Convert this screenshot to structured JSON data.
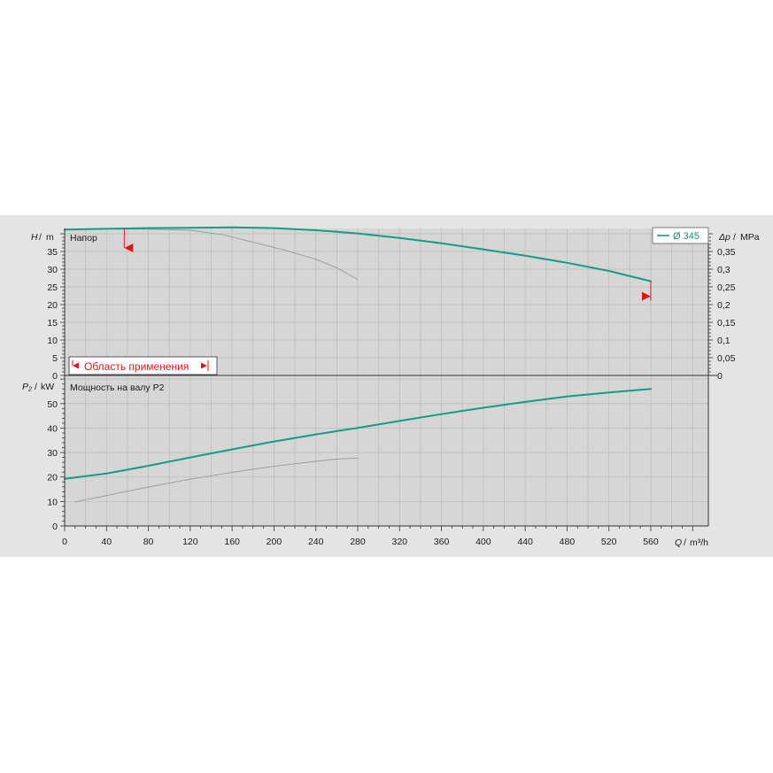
{
  "colors": {
    "panel_bg": "#e4e4e4",
    "plot_bg": "#d6d6d6",
    "grid": "#bdbdbd",
    "main_curve": "#149c84",
    "secondary_curve": "#9a9a9a",
    "range_marker": "#e0161b"
  },
  "chart_data": [
    {
      "type": "line",
      "panel": "head",
      "title": "Напор",
      "ylabel_symbol": "H",
      "ylabel_unit": "m",
      "y2label_symbol": "Δp",
      "y2label_unit": "MPa",
      "xlim": [
        0,
        615
      ],
      "ylim": [
        0,
        41.5
      ],
      "y2lim": [
        0,
        0.415
      ],
      "yticks": [
        0,
        5,
        10,
        15,
        20,
        25,
        30,
        35
      ],
      "y2ticks": [
        "0",
        "0,05",
        "0,1",
        "0,15",
        "0,2",
        "0,25",
        "0,3",
        "0,35"
      ],
      "y2tick_values": [
        0,
        0.05,
        0.1,
        0.15,
        0.2,
        0.25,
        0.3,
        0.35
      ],
      "grid": true,
      "legend": {
        "position": "top-right",
        "label": "Ø 345"
      },
      "operating_range": {
        "label": "Область применения",
        "q_min": 57,
        "q_max": 560
      },
      "series": [
        {
          "name": "Ø 345",
          "role": "main",
          "x": [
            0,
            40,
            80,
            120,
            160,
            200,
            240,
            280,
            320,
            360,
            400,
            440,
            480,
            520,
            560
          ],
          "y": [
            41.2,
            41.4,
            41.6,
            41.7,
            41.8,
            41.6,
            41.0,
            40.1,
            38.8,
            37.3,
            35.6,
            33.8,
            31.8,
            29.5,
            26.6
          ]
        },
        {
          "role": "secondary",
          "x": [
            50,
            80,
            120,
            150,
            180,
            210,
            240,
            260,
            280
          ],
          "y": [
            41.3,
            41.3,
            41.0,
            39.8,
            37.6,
            35.4,
            32.8,
            30.4,
            27.1
          ]
        }
      ]
    },
    {
      "type": "line",
      "panel": "power",
      "title": "Мощность на валу P2",
      "ylabel_symbol": "P₂",
      "ylabel_unit": "kW",
      "xlabel_symbol": "Q",
      "xlabel_unit": "m³/h",
      "xlim": [
        0,
        615
      ],
      "ylim": [
        0,
        61.5
      ],
      "xticks": [
        0,
        40,
        80,
        120,
        160,
        200,
        240,
        280,
        320,
        360,
        400,
        440,
        480,
        520,
        560
      ],
      "yticks": [
        0,
        10,
        20,
        30,
        40,
        50
      ],
      "grid": true,
      "series": [
        {
          "name": "Ø 345",
          "role": "main",
          "x": [
            0,
            40,
            80,
            120,
            160,
            200,
            240,
            280,
            320,
            360,
            400,
            440,
            480,
            520,
            560
          ],
          "y": [
            19.3,
            21.4,
            24.6,
            28.0,
            31.3,
            34.5,
            37.4,
            40.1,
            42.9,
            45.7,
            48.3,
            50.7,
            52.9,
            54.5,
            56.0
          ]
        },
        {
          "role": "secondary",
          "x": [
            10,
            40,
            80,
            120,
            160,
            200,
            240,
            260,
            280
          ],
          "y": [
            9.8,
            12.4,
            15.9,
            19.1,
            21.9,
            24.4,
            26.4,
            27.3,
            27.7
          ]
        }
      ]
    }
  ]
}
